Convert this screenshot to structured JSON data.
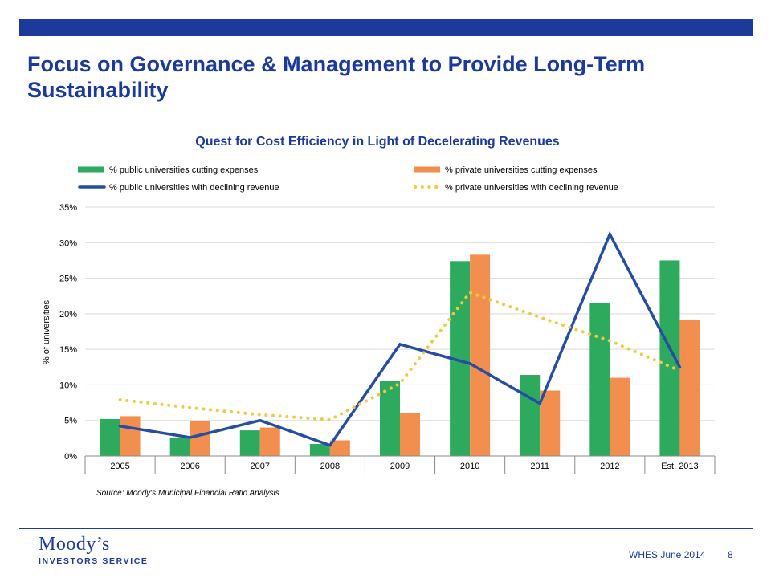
{
  "slide": {
    "title": "Focus on Governance & Management to Provide Long-Term Sustainability",
    "footer": "WHES June 2014",
    "page_number": "8",
    "logo_name": "Moody’s",
    "logo_subtitle": "INVESTORS SERVICE",
    "source": "Source: Moody's Municipal Financial Ratio Analysis"
  },
  "colors": {
    "brand_blue": "#1b3a9c",
    "public_cut": "#2eaa5e",
    "private_cut": "#f28f4e",
    "public_decline": "#254ea3",
    "private_decline": "#f5c842"
  },
  "chart_data": {
    "type": "bar",
    "title": "Quest for Cost Efficiency in Light of Decelerating Revenues",
    "xlabel": "",
    "ylabel": "% of universities",
    "categories": [
      "2005",
      "2006",
      "2007",
      "2008",
      "2009",
      "2010",
      "2011",
      "2012",
      "Est. 2013"
    ],
    "ylim": [
      0,
      35
    ],
    "yticks": [
      0,
      5,
      10,
      15,
      20,
      25,
      30,
      35
    ],
    "ytick_labels": [
      "0%",
      "5%",
      "10%",
      "15%",
      "20%",
      "25%",
      "30%",
      "35%"
    ],
    "grid": true,
    "legend_position": "top",
    "series": [
      {
        "name": "% public universities cutting expenses",
        "kind": "bar",
        "color": "#2eaa5e",
        "values": [
          5.2,
          2.6,
          3.6,
          1.7,
          10.5,
          27.4,
          11.4,
          21.5,
          27.5
        ]
      },
      {
        "name": "% private universities cutting expenses",
        "kind": "bar",
        "color": "#f28f4e",
        "values": [
          5.6,
          4.9,
          4.0,
          2.2,
          6.1,
          28.3,
          9.2,
          11.0,
          19.1
        ]
      },
      {
        "name": "% public universities with declining revenue",
        "kind": "line",
        "style": "solid",
        "color": "#254ea3",
        "values": [
          4.2,
          2.6,
          5.0,
          1.5,
          15.7,
          13.0,
          7.4,
          31.2,
          12.5
        ]
      },
      {
        "name": "% private universities with declining revenue",
        "kind": "line",
        "style": "dotted",
        "color": "#f5c842",
        "values": [
          7.9,
          6.8,
          5.8,
          5.1,
          10.2,
          23.0,
          19.5,
          16.2,
          12.0
        ]
      }
    ]
  }
}
